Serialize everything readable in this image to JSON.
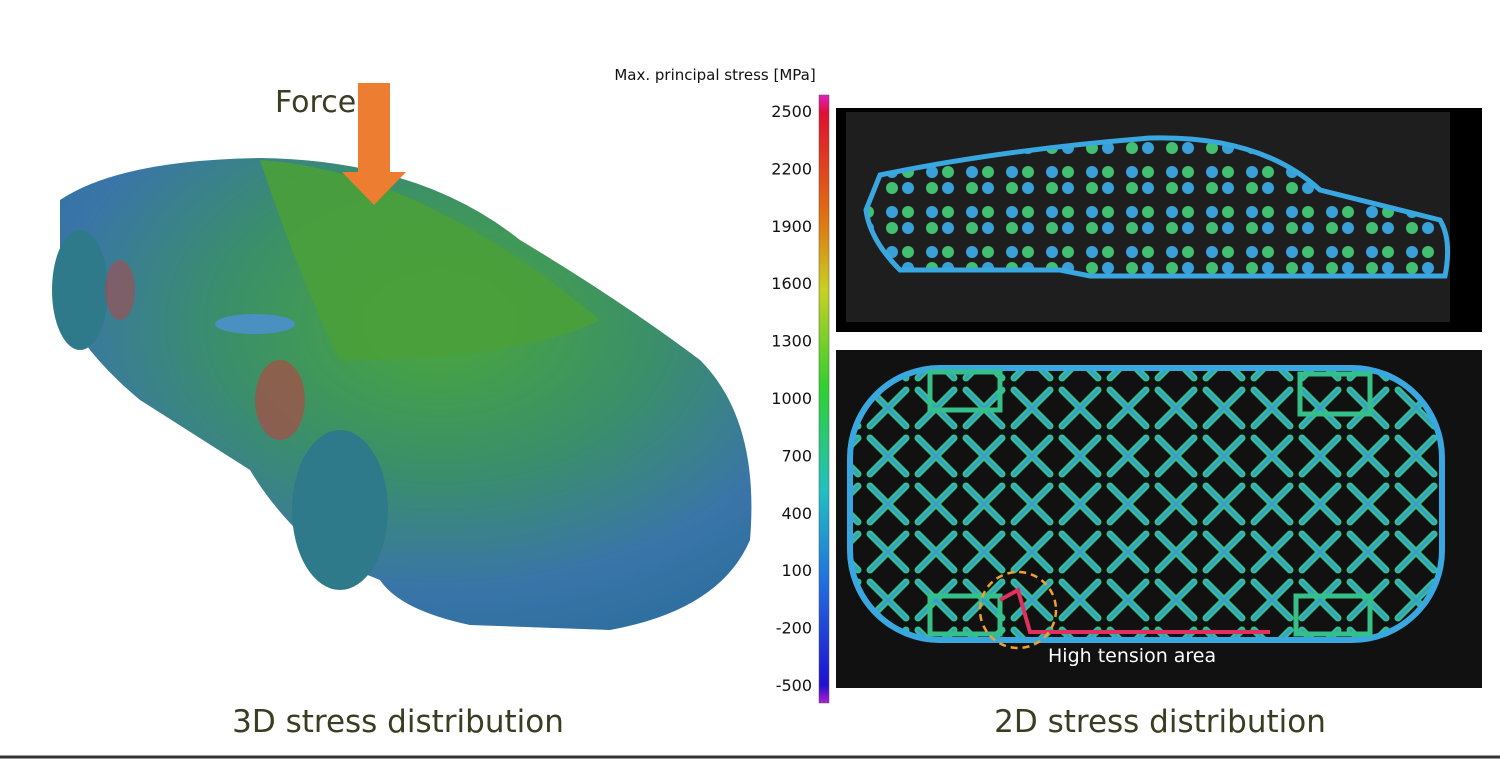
{
  "figure": {
    "force_label": "Force",
    "left_caption": "3D stress distribution",
    "right_caption": "2D stress distribution",
    "annotation": "High tension area",
    "colorbar": {
      "title": "Max. principal stress [MPa]",
      "ticks": [
        2500,
        2200,
        1900,
        1600,
        1300,
        1000,
        700,
        400,
        100,
        -200,
        -500
      ]
    }
  }
}
